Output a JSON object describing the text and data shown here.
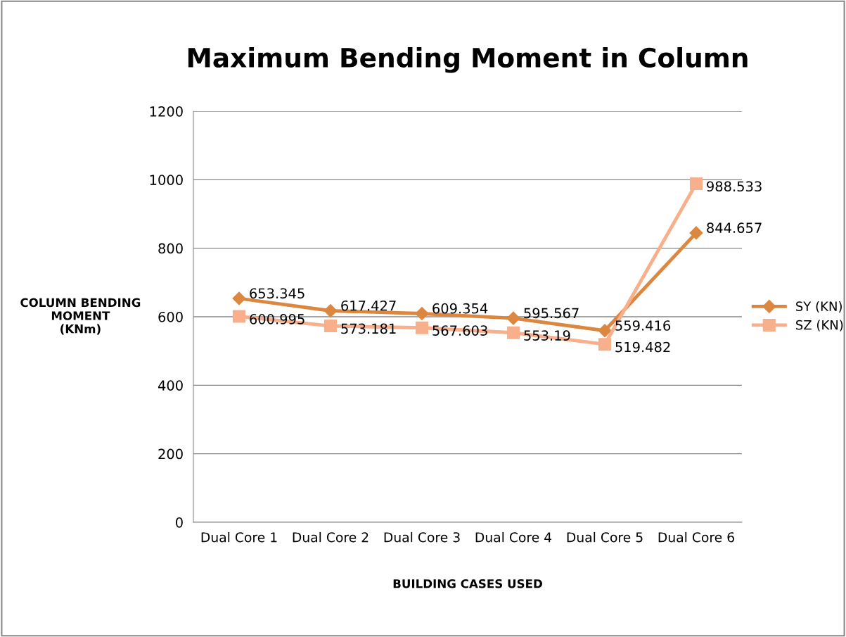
{
  "chart_data": {
    "type": "line",
    "title": "Maximum Bending Moment in Column",
    "xlabel": "BUILDING CASES USED",
    "ylabel": "COLUMN BENDING\nMOMENT\n(KNm)",
    "categories": [
      "Dual Core 1",
      "Dual Core 2",
      "Dual Core 3",
      "Dual Core 4",
      "Dual Core 5",
      "Dual Core 6"
    ],
    "series": [
      {
        "name": "SY (KN)",
        "color": "#dc8740",
        "marker": "diamond",
        "values": [
          653.345,
          617.427,
          609.354,
          595.567,
          559.416,
          844.657
        ]
      },
      {
        "name": "SZ (KN)",
        "color": "#f7b08b",
        "marker": "square",
        "values": [
          600.995,
          573.181,
          567.603,
          553.19,
          519.482,
          988.533
        ]
      }
    ],
    "ylim": [
      0,
      1200
    ],
    "yticks": [
      0,
      200,
      400,
      600,
      800,
      1000,
      1200
    ],
    "grid": "y",
    "legend": "right",
    "data_labels": true,
    "line_style": "solid"
  }
}
